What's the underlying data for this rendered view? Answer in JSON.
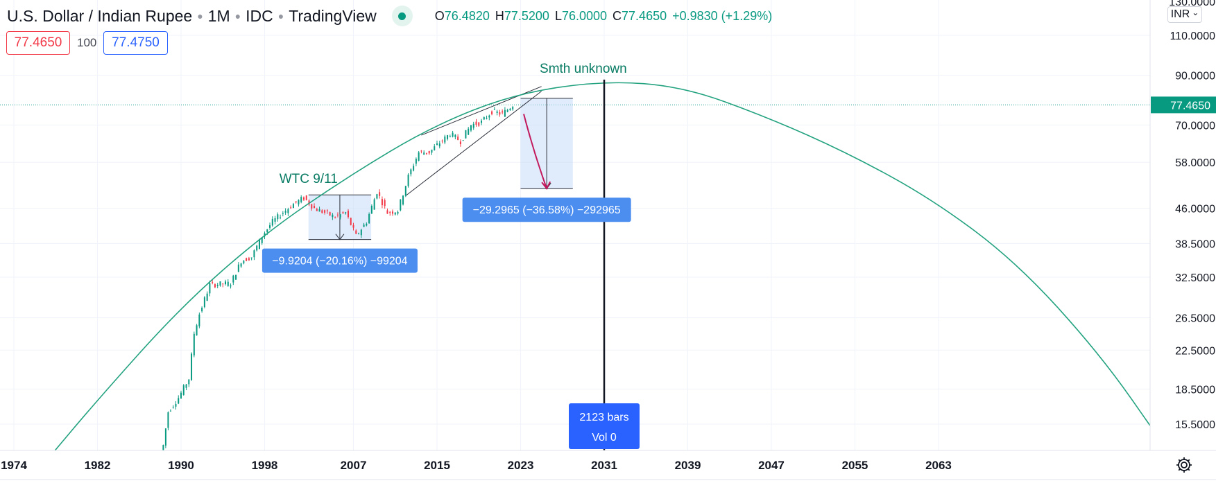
{
  "header": {
    "symbol": "U.S. Dollar / Indian Rupee",
    "interval": "1M",
    "source": "IDC",
    "platform": "TradingView",
    "ohlc": {
      "o_label": "O",
      "o": "76.4820",
      "h_label": "H",
      "h": "77.5200",
      "l_label": "L",
      "l": "76.0000",
      "c_label": "C",
      "c": "77.4650",
      "change": "+0.9830 (+1.29%)"
    }
  },
  "trade": {
    "sell_price": "77.4650",
    "qty": "100",
    "buy_price": "77.4750"
  },
  "currency": {
    "label": "INR",
    "chevron": "⌄"
  },
  "colors": {
    "up": "#089981",
    "down": "#f23645",
    "accent": "#2962ff",
    "arc": "#22a27f",
    "measure_fill": "#c6dcf7",
    "label_bg": "#4b8ef0"
  },
  "icons": {
    "settings": "gear-icon",
    "live": "market-open-dot-icon"
  },
  "chart_data": {
    "type": "candlestick",
    "title": "U.S. Dollar / Indian Rupee · 1M · IDC",
    "y_scale": "log",
    "ylim": [
      12.8,
      118
    ],
    "xlim": [
      1974,
      2080
    ],
    "x_ticks": [
      "1974",
      "1982",
      "1990",
      "1998",
      "2007",
      "2015",
      "2023",
      "2031",
      "2039",
      "2047",
      "2055",
      "2063"
    ],
    "x_tick_values": [
      1974,
      1982,
      1990,
      1998,
      2006.5,
      2014.5,
      2022.5,
      2030.5,
      2038.5,
      2046.5,
      2054.5,
      2062.5
    ],
    "y_ticks": [
      "110.0000",
      "90.0000",
      "70.0000",
      "58.0000",
      "46.0000",
      "38.5000",
      "32.5000",
      "26.5000",
      "22.5000",
      "18.5000",
      "15.5000"
    ],
    "y_tick_values": [
      110,
      90,
      70,
      58,
      46,
      38.5,
      32.5,
      26.5,
      22.5,
      18.5,
      15.5
    ],
    "y_top_partial_label": "130.0000",
    "last_price": "77.4650",
    "last_price_value": 77.465,
    "price_series": [
      {
        "x": 1988.3,
        "y": 12.8
      },
      {
        "x": 1989,
        "y": 16.5
      },
      {
        "x": 1990,
        "y": 17.7
      },
      {
        "x": 1991,
        "y": 19.5
      },
      {
        "x": 1991.5,
        "y": 24.5
      },
      {
        "x": 1992,
        "y": 27.0
      },
      {
        "x": 1993,
        "y": 31.3
      },
      {
        "x": 1994,
        "y": 31.4
      },
      {
        "x": 1995,
        "y": 31.5
      },
      {
        "x": 1996,
        "y": 35.3
      },
      {
        "x": 1997,
        "y": 36.0
      },
      {
        "x": 1998,
        "y": 40.0
      },
      {
        "x": 1999,
        "y": 43.0
      },
      {
        "x": 2000,
        "y": 45.0
      },
      {
        "x": 2001,
        "y": 47.0
      },
      {
        "x": 2002,
        "y": 48.5
      },
      {
        "x": 2003,
        "y": 46.0
      },
      {
        "x": 2004,
        "y": 45.0
      },
      {
        "x": 2005,
        "y": 44.0
      },
      {
        "x": 2006,
        "y": 45.0
      },
      {
        "x": 2007,
        "y": 40.0
      },
      {
        "x": 2008,
        "y": 43.0
      },
      {
        "x": 2009,
        "y": 50.0
      },
      {
        "x": 2010,
        "y": 45.0
      },
      {
        "x": 2011,
        "y": 45.5
      },
      {
        "x": 2012,
        "y": 54.0
      },
      {
        "x": 2013,
        "y": 61.0
      },
      {
        "x": 2014,
        "y": 61.0
      },
      {
        "x": 2015,
        "y": 64.0
      },
      {
        "x": 2016,
        "y": 67.0
      },
      {
        "x": 2017,
        "y": 64.5
      },
      {
        "x": 2018,
        "y": 70.0
      },
      {
        "x": 2019,
        "y": 71.0
      },
      {
        "x": 2020,
        "y": 75.0
      },
      {
        "x": 2021,
        "y": 74.0
      },
      {
        "x": 2022,
        "y": 77.465
      }
    ],
    "arc_curve": [
      {
        "x": 1977,
        "y": 12.8
      },
      {
        "x": 1982,
        "y": 17.5
      },
      {
        "x": 1990,
        "y": 28.0
      },
      {
        "x": 1998,
        "y": 40.5
      },
      {
        "x": 2006,
        "y": 54.0
      },
      {
        "x": 2014,
        "y": 69.5
      },
      {
        "x": 2022,
        "y": 82.0
      },
      {
        "x": 2030.5,
        "y": 87.5
      },
      {
        "x": 2038,
        "y": 85.0
      },
      {
        "x": 2046,
        "y": 73.0
      },
      {
        "x": 2054,
        "y": 60.5
      },
      {
        "x": 2062,
        "y": 48.0
      },
      {
        "x": 2070,
        "y": 35.0
      },
      {
        "x": 2078,
        "y": 22.0
      },
      {
        "x": 2084,
        "y": 14.0
      }
    ],
    "annotations": [
      {
        "text": "WTC 9/11",
        "x": 2002.2,
        "y": 50.5
      },
      {
        "text": "Smth unknown",
        "x": 2028.5,
        "y": 88.0
      }
    ],
    "measurements": [
      {
        "label": "−9.9204 (−20.16%) −99204",
        "x_start": 2002.2,
        "x_end": 2008.2,
        "y_start": 49.22,
        "y_end": 39.3
      },
      {
        "label": "−29.2965 (−36.58%) −292965",
        "x_start": 2022.5,
        "x_end": 2027.5,
        "y_start": 80.09,
        "y_end": 50.79
      }
    ],
    "wedge": {
      "upper": [
        [
          2013,
          66.5
        ],
        [
          2024.5,
          85.0
        ]
      ],
      "lower": [
        [
          2011.5,
          49.0
        ],
        [
          2024.5,
          83.0
        ]
      ]
    },
    "vertical_marker": {
      "x": 2030.5,
      "label_bars": "2123 bars",
      "label_vol": "Vol 0"
    }
  }
}
